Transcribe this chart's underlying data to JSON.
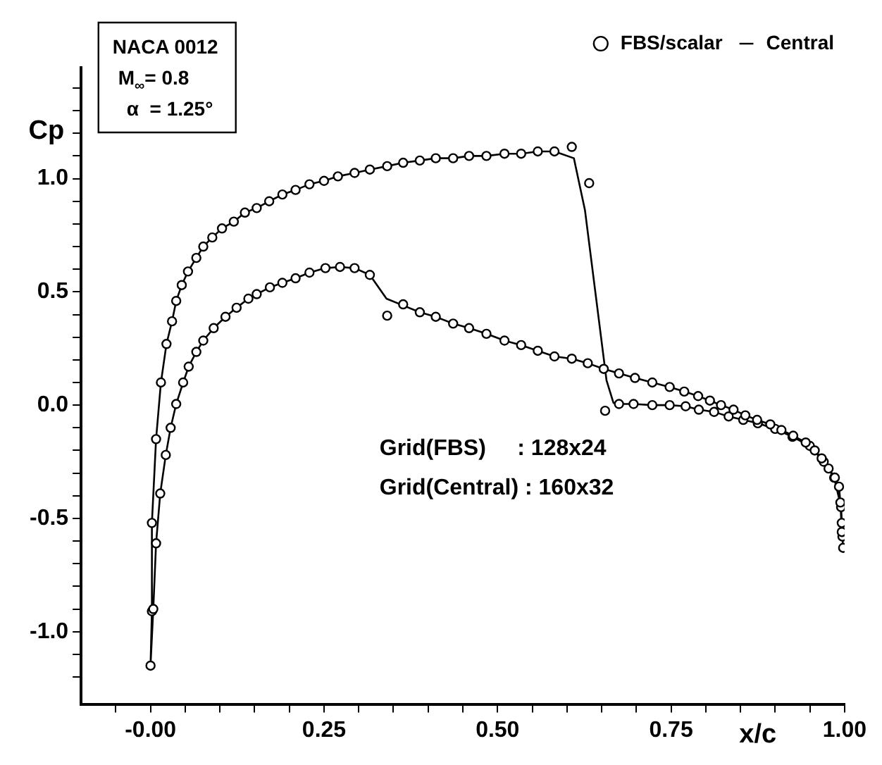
{
  "chart_data": {
    "type": "scatter",
    "xlabel": "x/c",
    "ylabel": "Cp",
    "legend": "top right",
    "annotations": [
      "NACA 0012",
      "M$_{∞}$= 0.8",
      "α  = 1.25°",
      "Grid(FBS)     : 128x24",
      "Grid(Central) : 160x32"
    ],
    "xlim": [
      -0.1,
      1.0
    ],
    "ylim": [
      -1.32,
      1.49
    ],
    "xticks": [
      {
        "value": -0.05,
        "label": null
      },
      {
        "value": 0,
        "label": "-0.00"
      },
      {
        "value": 0.05,
        "label": null
      },
      {
        "value": 0.1,
        "label": null
      },
      {
        "value": 0.15,
        "label": null
      },
      {
        "value": 0.2,
        "label": null
      },
      {
        "value": 0.25,
        "label": "0.25"
      },
      {
        "value": 0.3,
        "label": null
      },
      {
        "value": 0.35,
        "label": null
      },
      {
        "value": 0.4,
        "label": null
      },
      {
        "value": 0.45,
        "label": null
      },
      {
        "value": 0.5,
        "label": "0.50"
      },
      {
        "value": 0.55,
        "label": null
      },
      {
        "value": 0.6,
        "label": null
      },
      {
        "value": 0.65,
        "label": null
      },
      {
        "value": 0.7,
        "label": null
      },
      {
        "value": 0.75,
        "label": "0.75"
      },
      {
        "value": 0.8,
        "label": null
      },
      {
        "value": 0.85,
        "label": null
      },
      {
        "value": 0.9,
        "label": null
      },
      {
        "value": 0.95,
        "label": null
      },
      {
        "value": 1.0,
        "label": "1.00"
      }
    ],
    "yticks": [
      {
        "value": -1.2,
        "label": null
      },
      {
        "value": -1.1,
        "label": null
      },
      {
        "value": -1.0,
        "label": "-1.0"
      },
      {
        "value": -0.9,
        "label": null
      },
      {
        "value": -0.8,
        "label": null
      },
      {
        "value": -0.7,
        "label": null
      },
      {
        "value": -0.6,
        "label": null
      },
      {
        "value": -0.5,
        "label": "-0.5"
      },
      {
        "value": -0.4,
        "label": null
      },
      {
        "value": -0.3,
        "label": null
      },
      {
        "value": -0.2,
        "label": null
      },
      {
        "value": -0.1,
        "label": null
      },
      {
        "value": 0,
        "label": "0.0"
      },
      {
        "value": 0.1,
        "label": null
      },
      {
        "value": 0.2,
        "label": null
      },
      {
        "value": 0.3,
        "label": null
      },
      {
        "value": 0.4,
        "label": null
      },
      {
        "value": 0.5,
        "label": "0.5"
      },
      {
        "value": 0.6,
        "label": null
      },
      {
        "value": 0.7,
        "label": null
      },
      {
        "value": 0.8,
        "label": null
      },
      {
        "value": 0.9,
        "label": null
      },
      {
        "value": 1.0,
        "label": "1.0"
      },
      {
        "value": 1.1,
        "label": null
      },
      {
        "value": 1.2,
        "label": null
      },
      {
        "value": 1.3,
        "label": null
      },
      {
        "value": 1.4,
        "label": null
      }
    ],
    "series": [
      {
        "name": "FBS/scalar",
        "type": "scatter",
        "marker": "circle",
        "color": "#000000",
        "x": [
          0.997,
          0.996,
          0.995,
          0.985,
          0.97,
          0.95,
          0.925,
          0.9,
          0.875,
          0.854,
          0.833,
          0.812,
          0.79,
          0.771,
          0.748,
          0.723,
          0.696,
          0.675,
          0.655,
          0.632,
          0.607,
          0.582,
          0.558,
          0.534,
          0.51,
          0.484,
          0.459,
          0.436,
          0.411,
          0.388,
          0.364,
          0.341,
          0.316,
          0.294,
          0.27,
          0.25,
          0.229,
          0.209,
          0.19,
          0.171,
          0.153,
          0.136,
          0.12,
          0.103,
          0.089,
          0.076,
          0.066,
          0.054,
          0.045,
          0.037,
          0.031,
          0.023,
          0.015,
          0.008,
          0.002,
          0.002,
          0,
          0.004,
          0.008,
          0.014,
          0.022,
          0.029,
          0.037,
          0.047,
          0.055,
          0.066,
          0.076,
          0.091,
          0.108,
          0.124,
          0.141,
          0.153,
          0.172,
          0.19,
          0.209,
          0.229,
          0.252,
          0.273,
          0.294,
          0.316,
          0.341,
          0.364,
          0.388,
          0.411,
          0.436,
          0.459,
          0.484,
          0.51,
          0.534,
          0.558,
          0.582,
          0.607,
          0.63,
          0.653,
          0.675,
          0.698,
          0.723,
          0.748,
          0.769,
          0.789,
          0.806,
          0.822,
          0.84,
          0.857,
          0.874,
          0.893,
          0.909,
          0.926,
          0.944,
          0.957,
          0.967,
          0.977,
          0.986,
          0.992,
          0.994,
          0.996,
          0.998
        ],
        "values": [
          -0.58,
          -0.52,
          -0.45,
          -0.32,
          -0.25,
          -0.18,
          -0.14,
          -0.105,
          -0.08,
          -0.065,
          -0.05,
          -0.03,
          -0.02,
          -0.005,
          0,
          0,
          0.005,
          0.005,
          -0.025,
          0.98,
          1.14,
          1.12,
          1.12,
          1.11,
          1.11,
          1.1,
          1.1,
          1.09,
          1.09,
          1.08,
          1.07,
          1.055,
          1.04,
          1.025,
          1.01,
          0.99,
          0.975,
          0.95,
          0.93,
          0.9,
          0.87,
          0.85,
          0.81,
          0.78,
          0.74,
          0.7,
          0.65,
          0.59,
          0.53,
          0.46,
          0.37,
          0.27,
          0.1,
          -0.15,
          -0.52,
          -0.91,
          -1.15,
          -0.9,
          -0.61,
          -0.39,
          -0.22,
          -0.1,
          0.005,
          0.1,
          0.17,
          0.235,
          0.285,
          0.34,
          0.39,
          0.43,
          0.47,
          0.49,
          0.52,
          0.54,
          0.56,
          0.585,
          0.605,
          0.61,
          0.605,
          0.575,
          0.395,
          0.445,
          0.41,
          0.39,
          0.36,
          0.34,
          0.315,
          0.285,
          0.265,
          0.24,
          0.215,
          0.205,
          0.185,
          0.16,
          0.14,
          0.12,
          0.1,
          0.08,
          0.06,
          0.04,
          0.02,
          0,
          -0.02,
          -0.045,
          -0.065,
          -0.085,
          -0.11,
          -0.135,
          -0.165,
          -0.2,
          -0.235,
          -0.28,
          -0.32,
          -0.36,
          -0.43,
          -0.56,
          -0.63
        ]
      },
      {
        "name": "Central",
        "type": "line",
        "marker": "none",
        "color": "#000000",
        "x": [
          0.997,
          0.995,
          0.985,
          0.97,
          0.95,
          0.925,
          0.9,
          0.875,
          0.854,
          0.833,
          0.812,
          0.79,
          0.771,
          0.748,
          0.723,
          0.696,
          0.675,
          0.667,
          0.657,
          0.626,
          0.61,
          0.582,
          0.558,
          0.534,
          0.51,
          0.484,
          0.459,
          0.436,
          0.411,
          0.388,
          0.364,
          0.341,
          0.316,
          0.294,
          0.27,
          0.25,
          0.229,
          0.209,
          0.19,
          0.171,
          0.153,
          0.136,
          0.12,
          0.103,
          0.089,
          0.076,
          0.066,
          0.054,
          0.045,
          0.037,
          0.031,
          0.023,
          0.015,
          0.008,
          0.002,
          0.002,
          0,
          0.004,
          0.008,
          0.014,
          0.022,
          0.029,
          0.037,
          0.047,
          0.055,
          0.066,
          0.076,
          0.091,
          0.108,
          0.124,
          0.141,
          0.153,
          0.172,
          0.19,
          0.209,
          0.229,
          0.252,
          0.273,
          0.294,
          0.316,
          0.34,
          0.364,
          0.388,
          0.411,
          0.436,
          0.459,
          0.484,
          0.51,
          0.534,
          0.558,
          0.582,
          0.607,
          0.63,
          0.653,
          0.675,
          0.698,
          0.723,
          0.748,
          0.769,
          0.789,
          0.806,
          0.822,
          0.84,
          0.857,
          0.874,
          0.893,
          0.909,
          0.926,
          0.944,
          0.957,
          0.967,
          0.977,
          0.986,
          0.992,
          0.994,
          0.996,
          0.998
        ],
        "values": [
          -0.58,
          -0.45,
          -0.32,
          -0.25,
          -0.18,
          -0.14,
          -0.105,
          -0.08,
          -0.065,
          -0.05,
          -0.03,
          -0.02,
          -0.005,
          0,
          0,
          0.005,
          0.005,
          0.01,
          0.11,
          0.86,
          1.09,
          1.12,
          1.12,
          1.11,
          1.11,
          1.1,
          1.1,
          1.09,
          1.09,
          1.08,
          1.07,
          1.055,
          1.04,
          1.025,
          1.01,
          0.99,
          0.975,
          0.95,
          0.93,
          0.9,
          0.87,
          0.85,
          0.81,
          0.78,
          0.74,
          0.7,
          0.65,
          0.59,
          0.53,
          0.46,
          0.37,
          0.27,
          0.1,
          -0.15,
          -0.52,
          -0.91,
          -1.15,
          -0.9,
          -0.61,
          -0.39,
          -0.22,
          -0.1,
          0.005,
          0.1,
          0.17,
          0.235,
          0.285,
          0.34,
          0.39,
          0.43,
          0.47,
          0.49,
          0.52,
          0.54,
          0.56,
          0.585,
          0.605,
          0.61,
          0.605,
          0.575,
          0.47,
          0.44,
          0.41,
          0.39,
          0.36,
          0.34,
          0.315,
          0.285,
          0.265,
          0.24,
          0.215,
          0.205,
          0.185,
          0.16,
          0.14,
          0.12,
          0.1,
          0.08,
          0.06,
          0.04,
          0.02,
          0,
          -0.02,
          -0.045,
          -0.065,
          -0.085,
          -0.11,
          -0.135,
          -0.165,
          -0.2,
          -0.235,
          -0.28,
          -0.32,
          -0.36,
          -0.43,
          -0.56,
          -0.63
        ]
      }
    ]
  }
}
